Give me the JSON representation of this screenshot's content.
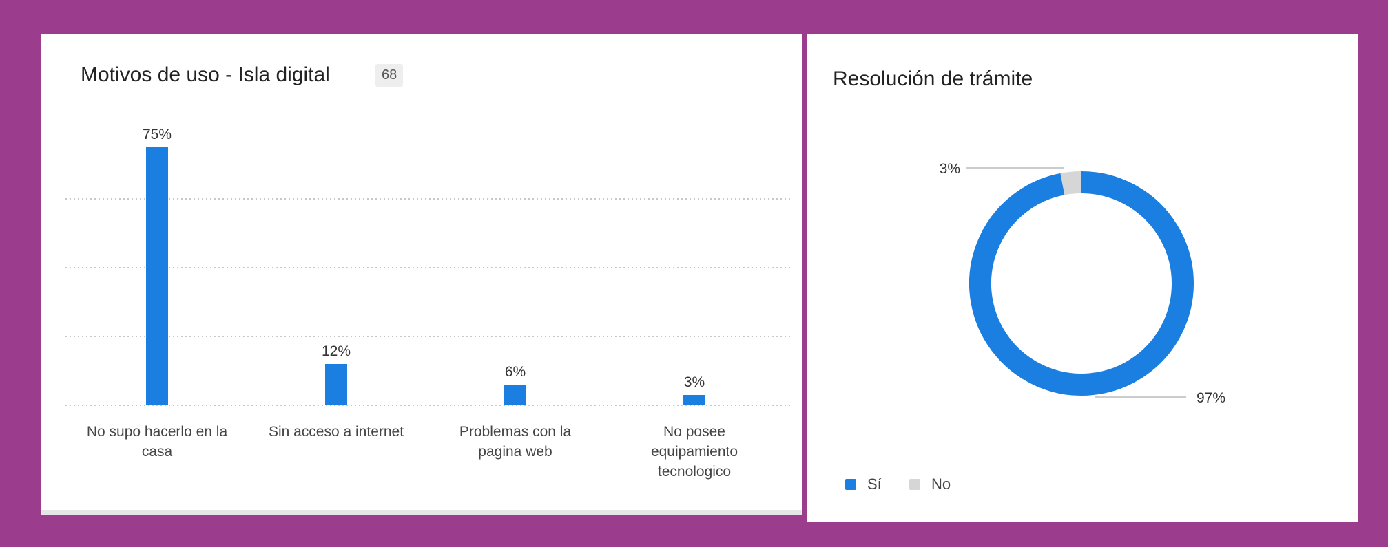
{
  "bar_panel": {
    "title": "Motivos de uso - Isla digital",
    "count": "68"
  },
  "donut_panel": {
    "title": "Resolución de trámite"
  },
  "colors": {
    "frame": "#9b3d8c",
    "bar": "#1a7fe0",
    "no_slice": "#d6d6d6"
  },
  "chart_data": [
    {
      "type": "bar",
      "title": "Motivos de uso - Isla digital",
      "categories": [
        [
          "No supo hacerlo en la",
          "casa"
        ],
        [
          "Sin acceso a internet"
        ],
        [
          "Problemas con la",
          "pagina web"
        ],
        [
          "No posee",
          "equipamiento",
          "tecnologico"
        ]
      ],
      "values": [
        75,
        12,
        6,
        3
      ],
      "data_labels": [
        "75%",
        "12%",
        "6%",
        "3%"
      ],
      "ylim": [
        0,
        75
      ],
      "grid": true
    },
    {
      "type": "pie",
      "title": "Resolución de trámite",
      "labels": [
        "Sí",
        "No"
      ],
      "values": [
        97,
        3
      ],
      "data_labels": [
        "97%",
        "3%"
      ],
      "legend": "bottom-left"
    }
  ]
}
